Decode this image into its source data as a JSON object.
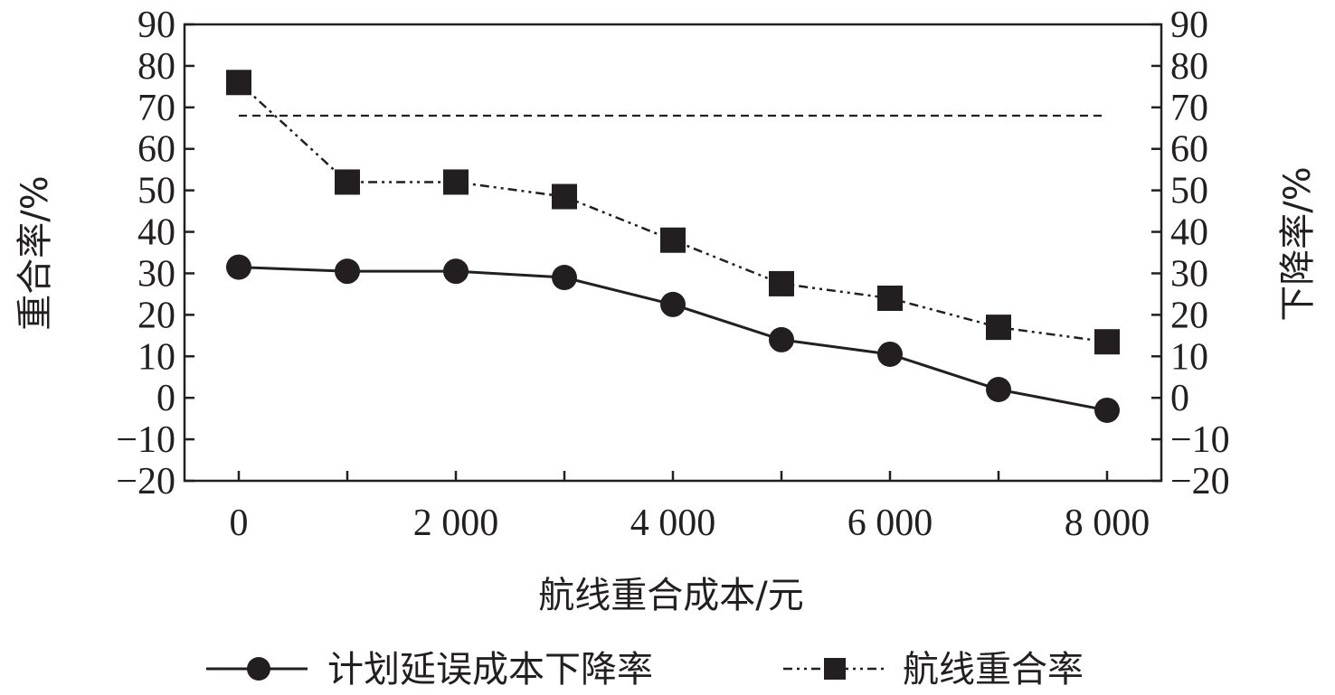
{
  "chart_data": {
    "type": "line",
    "x_ticks": [
      "0",
      "2 000",
      "4 000",
      "6 000",
      "8 000"
    ],
    "x_tick_values": [
      0,
      2000,
      4000,
      6000,
      8000
    ],
    "xlim": [
      -500,
      8500
    ],
    "y_ticks": [
      "90",
      "80",
      "70",
      "60",
      "50",
      "40",
      "30",
      "20",
      "10",
      "0",
      "−10",
      "−20"
    ],
    "y_tick_values": [
      90,
      80,
      70,
      60,
      50,
      40,
      30,
      20,
      10,
      0,
      -10,
      -20
    ],
    "ylim": [
      -20,
      90
    ],
    "xlabel": "航线重合成本/元",
    "ylabel_left": "重合率/%",
    "ylabel_right": "下降率/%",
    "grid": false,
    "legend_position": "bottom",
    "x": [
      0,
      1000,
      2000,
      3000,
      4000,
      5000,
      6000,
      7000,
      8000
    ],
    "series": [
      {
        "name": "计划延误成本下降率",
        "marker": "circle",
        "line_style": "solid",
        "color": "#231f20",
        "values": [
          31.5,
          30.5,
          30.5,
          29,
          22.5,
          14,
          10.5,
          2,
          -3
        ]
      },
      {
        "name": "航线重合率",
        "marker": "square",
        "line_style": "dash-dot-dot",
        "color": "#231f20",
        "values": [
          76,
          52,
          52,
          48.5,
          38,
          27.5,
          24,
          17,
          13.5
        ]
      }
    ],
    "reference_line": {
      "style": "dashed",
      "y": 68,
      "x_range": [
        0,
        8000
      ]
    }
  }
}
